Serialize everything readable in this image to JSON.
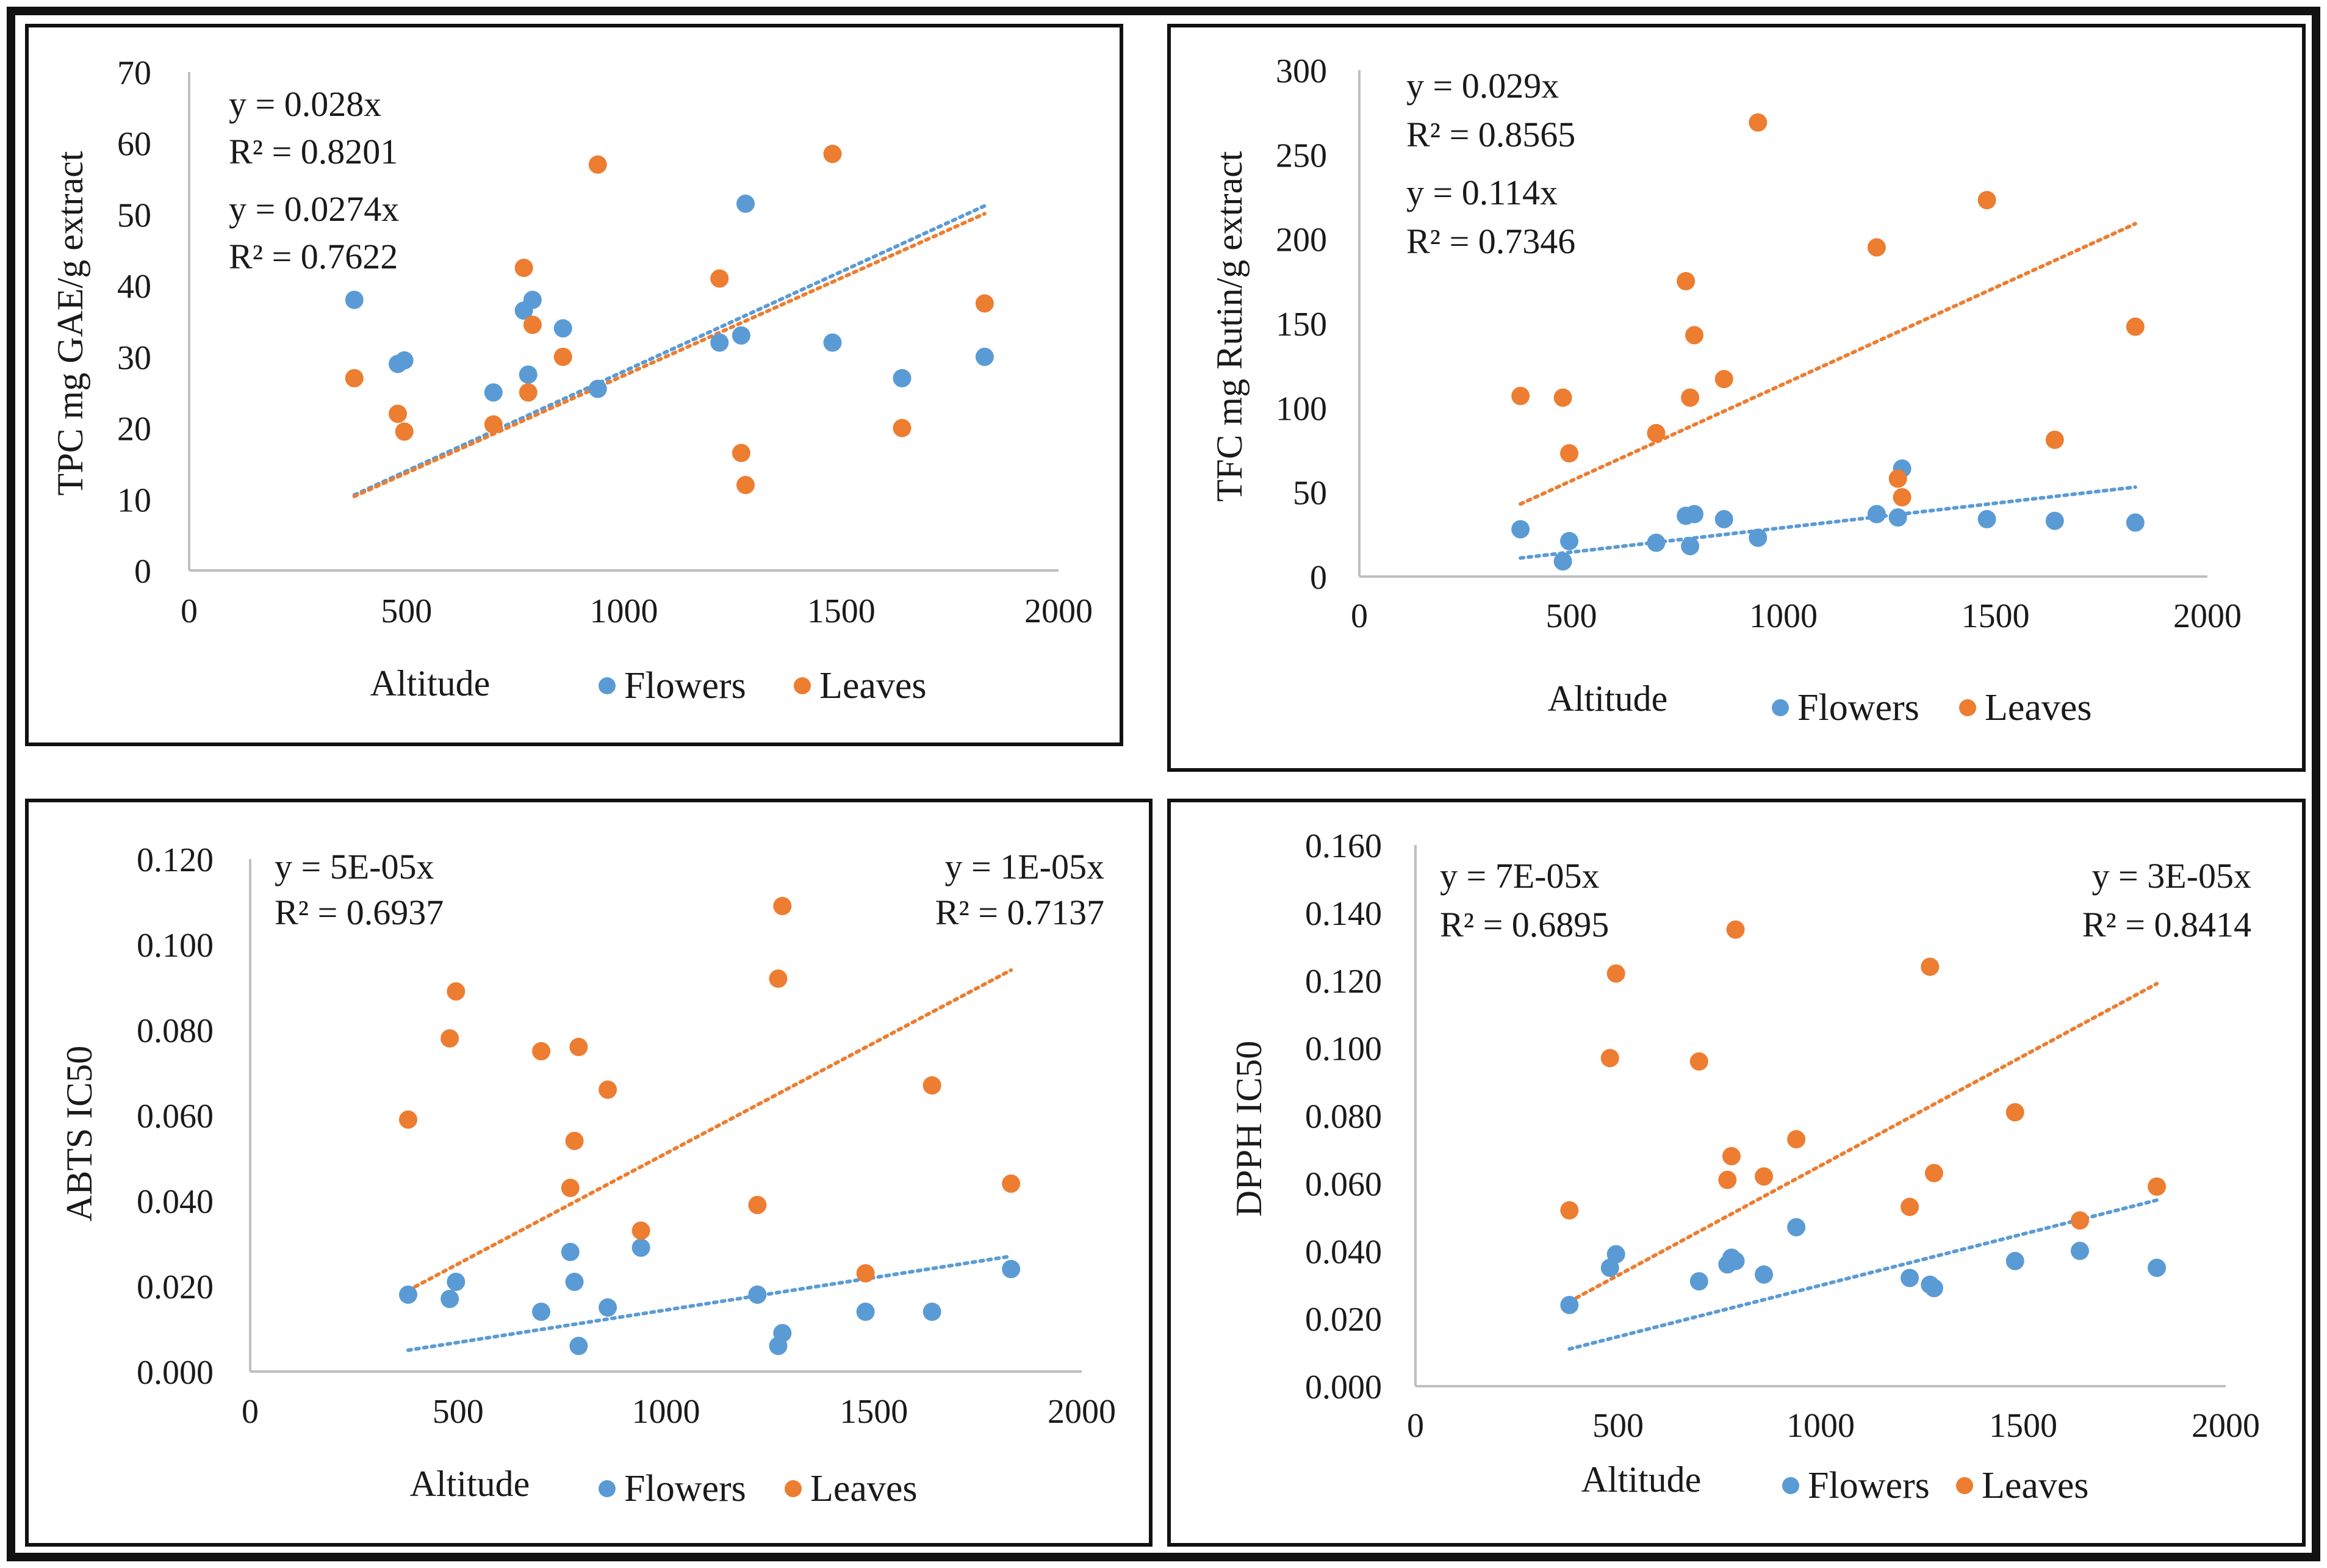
{
  "colors": {
    "flowers": "#5B9BD5",
    "leaves": "#ED7D31",
    "axis": "#BFBFBF",
    "frame": "#111111"
  },
  "chart_data": [
    {
      "id": "tpc",
      "type": "scatter",
      "title": "",
      "xlabel": "Altitude",
      "ylabel": "TPC mg GAE/g extract",
      "xlim": [
        0,
        2000
      ],
      "ylim": [
        0,
        70
      ],
      "xticks": [
        "0",
        "500",
        "1000",
        "1500",
        "2000"
      ],
      "yticks": [
        "0",
        "10",
        "20",
        "30",
        "40",
        "50",
        "60",
        "70"
      ],
      "legend": [
        "Flowers",
        "Leaves"
      ],
      "annotations": [
        "y = 0.028x",
        "R² = 0.8201",
        "y = 0.0274x",
        "R² = 0.7622"
      ],
      "series": [
        {
          "name": "Flowers",
          "color": "#5B9BD5",
          "points": [
            [
              380,
              38
            ],
            [
              480,
              29
            ],
            [
              495,
              29.5
            ],
            [
              700,
              25
            ],
            [
              770,
              36.5
            ],
            [
              780,
              27.5
            ],
            [
              790,
              38
            ],
            [
              860,
              34
            ],
            [
              940,
              25.5
            ],
            [
              1220,
              32
            ],
            [
              1270,
              33
            ],
            [
              1280,
              51.5
            ],
            [
              1480,
              32
            ],
            [
              1640,
              27
            ],
            [
              1830,
              30
            ]
          ],
          "trend": [
            [
              380,
              10.6
            ],
            [
              1830,
              51.2
            ]
          ]
        },
        {
          "name": "Leaves",
          "color": "#ED7D31",
          "points": [
            [
              380,
              27
            ],
            [
              480,
              22
            ],
            [
              495,
              19.5
            ],
            [
              700,
              20.5
            ],
            [
              770,
              42.5
            ],
            [
              780,
              25
            ],
            [
              790,
              34.5
            ],
            [
              860,
              30
            ],
            [
              940,
              57
            ],
            [
              1220,
              41
            ],
            [
              1270,
              16.5
            ],
            [
              1280,
              12
            ],
            [
              1480,
              58.5
            ],
            [
              1640,
              20
            ],
            [
              1830,
              37.5
            ]
          ],
          "trend": [
            [
              380,
              10.4
            ],
            [
              1830,
              50.1
            ]
          ]
        }
      ]
    },
    {
      "id": "tfc",
      "type": "scatter",
      "title": "",
      "xlabel": "Altitude",
      "ylabel": "TFC mg Rutin/g extract",
      "xlim": [
        0,
        2000
      ],
      "ylim": [
        0,
        300
      ],
      "xticks": [
        "0",
        "500",
        "1000",
        "1500",
        "2000"
      ],
      "yticks": [
        "0",
        "50",
        "100",
        "150",
        "200",
        "250",
        "300"
      ],
      "legend": [
        "Flowers",
        "Leaves"
      ],
      "annotations": [
        "y = 0.029x",
        "R² = 0.8565",
        "y = 0.114x",
        "R² = 0.7346"
      ],
      "series": [
        {
          "name": "Flowers",
          "color": "#5B9BD5",
          "points": [
            [
              380,
              28
            ],
            [
              480,
              9
            ],
            [
              495,
              21
            ],
            [
              700,
              20
            ],
            [
              770,
              36
            ],
            [
              780,
              18
            ],
            [
              790,
              37
            ],
            [
              860,
              34
            ],
            [
              940,
              23
            ],
            [
              1220,
              37
            ],
            [
              1270,
              35
            ],
            [
              1280,
              64
            ],
            [
              1480,
              34
            ],
            [
              1640,
              33
            ],
            [
              1830,
              32
            ]
          ],
          "trend": [
            [
              380,
              11
            ],
            [
              1830,
              53
            ]
          ]
        },
        {
          "name": "Leaves",
          "color": "#ED7D31",
          "points": [
            [
              380,
              107
            ],
            [
              480,
              106
            ],
            [
              495,
              73
            ],
            [
              700,
              85
            ],
            [
              770,
              175
            ],
            [
              780,
              106
            ],
            [
              790,
              143
            ],
            [
              860,
              117
            ],
            [
              940,
              269
            ],
            [
              1220,
              195
            ],
            [
              1270,
              58
            ],
            [
              1280,
              47
            ],
            [
              1480,
              223
            ],
            [
              1640,
              81
            ],
            [
              1830,
              148
            ]
          ],
          "trend": [
            [
              380,
              43
            ],
            [
              1830,
              209
            ]
          ]
        }
      ]
    },
    {
      "id": "abts",
      "type": "scatter",
      "title": "",
      "xlabel": "Altitude",
      "ylabel": "ABTS IC50",
      "xlim": [
        0,
        2000
      ],
      "ylim": [
        0,
        0.12
      ],
      "xticks": [
        "0",
        "500",
        "1000",
        "1500",
        "2000"
      ],
      "yticks": [
        "0.000",
        "0.020",
        "0.040",
        "0.060",
        "0.080",
        "0.100",
        "0.120"
      ],
      "legend": [
        "Flowers",
        "Leaves"
      ],
      "annotations": [
        "y = 5E-05x",
        "R² = 0.6937",
        "y = 1E-05x",
        "R² = 0.7137"
      ],
      "series": [
        {
          "name": "Flowers",
          "color": "#5B9BD5",
          "points": [
            [
              380,
              0.018
            ],
            [
              480,
              0.017
            ],
            [
              495,
              0.021
            ],
            [
              700,
              0.014
            ],
            [
              770,
              0.028
            ],
            [
              780,
              0.021
            ],
            [
              790,
              0.006
            ],
            [
              860,
              0.015
            ],
            [
              940,
              0.029
            ],
            [
              1220,
              0.018
            ],
            [
              1270,
              0.006
            ],
            [
              1280,
              0.009
            ],
            [
              1480,
              0.014
            ],
            [
              1640,
              0.014
            ],
            [
              1830,
              0.024
            ]
          ],
          "trend": [
            [
              380,
              0.005
            ],
            [
              1830,
              0.027
            ]
          ]
        },
        {
          "name": "Leaves",
          "color": "#ED7D31",
          "points": [
            [
              380,
              0.059
            ],
            [
              480,
              0.078
            ],
            [
              495,
              0.089
            ],
            [
              700,
              0.075
            ],
            [
              770,
              0.043
            ],
            [
              780,
              0.054
            ],
            [
              790,
              0.076
            ],
            [
              860,
              0.066
            ],
            [
              940,
              0.033
            ],
            [
              1220,
              0.039
            ],
            [
              1270,
              0.092
            ],
            [
              1280,
              0.109
            ],
            [
              1480,
              0.023
            ],
            [
              1640,
              0.067
            ],
            [
              1830,
              0.044
            ]
          ],
          "trend": [
            [
              380,
              0.019
            ],
            [
              1830,
              0.094
            ]
          ]
        }
      ]
    },
    {
      "id": "dpph",
      "type": "scatter",
      "title": "",
      "xlabel": "Altitude",
      "ylabel": "DPPH IC50",
      "xlim": [
        0,
        2000
      ],
      "ylim": [
        0,
        0.16
      ],
      "xticks": [
        "0",
        "500",
        "1000",
        "1500",
        "2000"
      ],
      "yticks": [
        "0.000",
        "0.020",
        "0.040",
        "0.060",
        "0.080",
        "0.100",
        "0.120",
        "0.140",
        "0.160"
      ],
      "legend": [
        "Flowers",
        "Leaves"
      ],
      "annotations": [
        "y = 7E-05x",
        "R² = 0.6895",
        "y = 3E-05x",
        "R² = 0.8414"
      ],
      "series": [
        {
          "name": "Flowers",
          "color": "#5B9BD5",
          "points": [
            [
              380,
              0.024
            ],
            [
              480,
              0.035
            ],
            [
              495,
              0.039
            ],
            [
              700,
              0.031
            ],
            [
              770,
              0.036
            ],
            [
              780,
              0.038
            ],
            [
              790,
              0.037
            ],
            [
              860,
              0.033
            ],
            [
              940,
              0.047
            ],
            [
              1220,
              0.032
            ],
            [
              1270,
              0.03
            ],
            [
              1280,
              0.029
            ],
            [
              1480,
              0.037
            ],
            [
              1640,
              0.04
            ],
            [
              1830,
              0.035
            ]
          ],
          "trend": [
            [
              380,
              0.011
            ],
            [
              1830,
              0.055
            ]
          ]
        },
        {
          "name": "Leaves",
          "color": "#ED7D31",
          "points": [
            [
              380,
              0.052
            ],
            [
              480,
              0.097
            ],
            [
              495,
              0.122
            ],
            [
              700,
              0.096
            ],
            [
              770,
              0.061
            ],
            [
              780,
              0.068
            ],
            [
              790,
              0.135
            ],
            [
              860,
              0.062
            ],
            [
              940,
              0.073
            ],
            [
              1220,
              0.053
            ],
            [
              1270,
              0.124
            ],
            [
              1280,
              0.063
            ],
            [
              1480,
              0.081
            ],
            [
              1640,
              0.049
            ],
            [
              1830,
              0.059
            ]
          ],
          "trend": [
            [
              380,
              0.025
            ],
            [
              1830,
              0.119
            ]
          ]
        }
      ]
    }
  ]
}
